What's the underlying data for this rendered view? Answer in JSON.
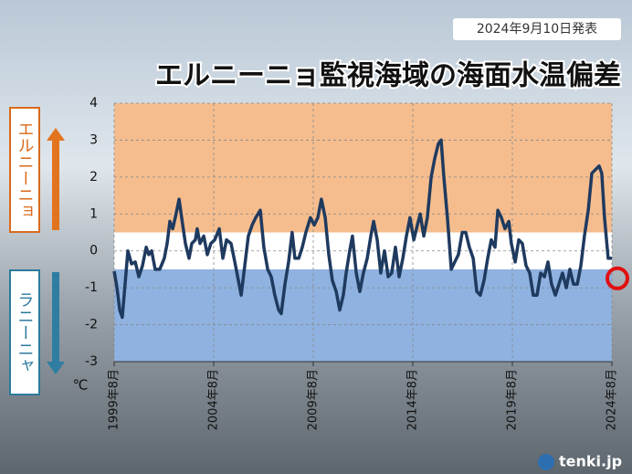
{
  "chart_data": {
    "type": "line",
    "title": "エルニーニョ監視海域の海面水温偏差",
    "date_badge": "2024年9月10日発表",
    "y_unit": "℃",
    "el_nino_label": "エルニーニョ",
    "la_nina_label": "ラニーニャ",
    "logo": "tenki.jp",
    "color": "#1f3a5f",
    "bands": [
      {
        "from": 0.5,
        "to": 4,
        "color": "#f5bd8e"
      },
      {
        "from": -0.5,
        "to": 0.5,
        "color": "#ffffff"
      },
      {
        "from": -3,
        "to": -0.5,
        "color": "#8fb2e0"
      }
    ],
    "xlim": [
      1999.58,
      2024.58
    ],
    "xticks": [
      {
        "value": 1999.58,
        "label": "1999年8月"
      },
      {
        "value": 2004.58,
        "label": "2004年8月"
      },
      {
        "value": 2009.58,
        "label": "2009年8月"
      },
      {
        "value": 2014.58,
        "label": "2014年8月"
      },
      {
        "value": 2019.58,
        "label": "2019年8月"
      },
      {
        "value": 2024.58,
        "label": "2024年8月"
      }
    ],
    "ylim": [
      -3,
      4
    ],
    "yticks": [
      -3,
      -2,
      -1,
      0,
      1,
      2,
      3,
      4
    ],
    "grid": true,
    "x": [
      1999.58,
      1999.72,
      1999.86,
      1999.99,
      2000.27,
      2000.45,
      2000.64,
      2000.82,
      2001.0,
      2001.19,
      2001.32,
      2001.46,
      2001.64,
      2001.87,
      2002.1,
      2002.24,
      2002.38,
      2002.52,
      2002.65,
      2002.84,
      2002.97,
      2003.16,
      2003.34,
      2003.48,
      2003.66,
      2003.75,
      2003.89,
      2004.08,
      2004.26,
      2004.44,
      2004.63,
      2004.86,
      2005.04,
      2005.22,
      2005.45,
      2005.64,
      2005.82,
      2005.96,
      2006.14,
      2006.32,
      2006.51,
      2006.69,
      2006.92,
      2007.1,
      2007.29,
      2007.47,
      2007.65,
      2007.84,
      2007.97,
      2008.16,
      2008.34,
      2008.52,
      2008.66,
      2008.85,
      2009.03,
      2009.21,
      2009.44,
      2009.63,
      2009.81,
      2009.99,
      2010.18,
      2010.36,
      2010.54,
      2010.73,
      2010.91,
      2011.09,
      2011.23,
      2011.41,
      2011.55,
      2011.74,
      2011.92,
      2012.1,
      2012.29,
      2012.47,
      2012.61,
      2012.79,
      2012.97,
      2013.16,
      2013.34,
      2013.52,
      2013.71,
      2013.89,
      2014.08,
      2014.26,
      2014.44,
      2014.63,
      2014.81,
      2014.95,
      2015.13,
      2015.31,
      2015.5,
      2015.68,
      2015.86,
      2016.0,
      2016.14,
      2016.32,
      2016.51,
      2016.69,
      2016.87,
      2017.06,
      2017.24,
      2017.42,
      2017.61,
      2017.79,
      2017.97,
      2018.16,
      2018.34,
      2018.52,
      2018.71,
      2018.85,
      2019.03,
      2019.21,
      2019.4,
      2019.53,
      2019.72,
      2019.9,
      2020.08,
      2020.27,
      2020.45,
      2020.63,
      2020.82,
      2021.0,
      2021.19,
      2021.37,
      2021.55,
      2021.74,
      2021.92,
      2022.1,
      2022.29,
      2022.47,
      2022.65,
      2022.84,
      2023.02,
      2023.2,
      2023.39,
      2023.57,
      2023.75,
      2023.94,
      2024.07,
      2024.21,
      2024.39,
      2024.58
    ],
    "values": [
      -0.55,
      -1.0,
      -1.6,
      -1.8,
      0,
      -0.35,
      -0.3,
      -0.7,
      -0.4,
      0.1,
      -0.1,
      0,
      -0.5,
      -0.5,
      -0.2,
      0.2,
      0.8,
      0.6,
      0.9,
      1.4,
      0.9,
      0.2,
      -0.2,
      0.2,
      0.3,
      0.6,
      0.2,
      0.4,
      -0.1,
      0.2,
      0.3,
      0.6,
      -0.2,
      0.3,
      0.2,
      -0.3,
      -0.8,
      -1.2,
      -0.4,
      0.4,
      0.7,
      0.9,
      1.1,
      0.1,
      -0.5,
      -0.7,
      -1.2,
      -1.6,
      -1.7,
      -0.9,
      -0.3,
      0.5,
      -0.2,
      -0.2,
      0.1,
      0.5,
      0.9,
      0.7,
      0.9,
      1.4,
      0.9,
      -0.1,
      -0.8,
      -1.1,
      -1.6,
      -1.2,
      -0.6,
      0,
      0.4,
      -0.6,
      -1.1,
      -0.6,
      -0.2,
      0.4,
      0.8,
      0.3,
      -0.6,
      0,
      -0.7,
      -0.6,
      0.1,
      -0.7,
      -0.2,
      0.4,
      0.9,
      0.3,
      0.7,
      1.0,
      0.4,
      0.9,
      2.0,
      2.5,
      2.9,
      3.0,
      2.0,
      0.9,
      -0.5,
      -0.3,
      -0.1,
      0.5,
      0.5,
      0.1,
      -0.2,
      -1.1,
      -1.2,
      -0.8,
      -0.2,
      0.3,
      0.1,
      1.1,
      0.9,
      0.6,
      0.8,
      0.2,
      -0.3,
      0.3,
      0.2,
      -0.4,
      -0.6,
      -1.2,
      -1.2,
      -0.6,
      -0.7,
      -0.3,
      -0.9,
      -1.2,
      -0.9,
      -0.6,
      -1.0,
      -0.5,
      -0.9,
      -0.9,
      -0.4,
      0.4,
      1.1,
      2.1,
      2.2,
      2.3,
      2.1,
      0.9,
      -0.2,
      -0.2
    ]
  }
}
